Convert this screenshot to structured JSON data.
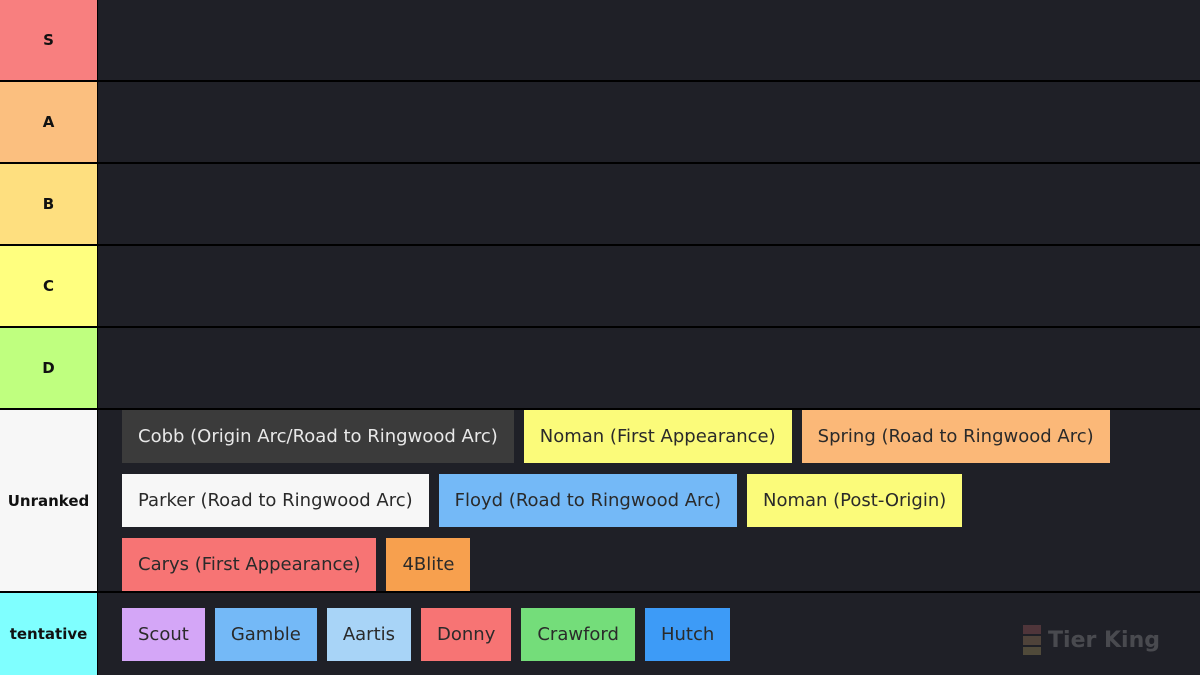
{
  "tiers": [
    {
      "label": "S",
      "color": "#f87f7f",
      "items": []
    },
    {
      "label": "A",
      "color": "#fbbf7f",
      "items": []
    },
    {
      "label": "B",
      "color": "#fedf7f",
      "items": []
    },
    {
      "label": "C",
      "color": "#ffff7f",
      "items": []
    },
    {
      "label": "D",
      "color": "#bfff7f",
      "items": []
    },
    {
      "label": "Unranked",
      "color": "#f7f7f7",
      "items": [
        {
          "label": "Cobb (Origin Arc/Road to Ringwood Arc)",
          "color": "#3b3b3b",
          "text_color": "#e8e8e8"
        },
        {
          "label": "Noman (First Appearance)",
          "color": "#fbfb7a"
        },
        {
          "label": "Spring (Road to Ringwood Arc)",
          "color": "#fbb878"
        },
        {
          "label": "Parker (Road to Ringwood Arc)",
          "color": "#f7f7f7"
        },
        {
          "label": "Floyd (Road to Ringwood Arc)",
          "color": "#74b9f7"
        },
        {
          "label": "Noman (Post-Origin)",
          "color": "#fbfb7a"
        },
        {
          "label": "Carys (First Appearance)",
          "color": "#f77474"
        },
        {
          "label": "4Blite",
          "color": "#f7a04e"
        }
      ]
    },
    {
      "label": "tentative",
      "color": "#7fffff",
      "items": [
        {
          "label": "Scout",
          "color": "#d4a6f7"
        },
        {
          "label": "Gamble",
          "color": "#74b9f7"
        },
        {
          "label": "Aartis",
          "color": "#a8d4f7"
        },
        {
          "label": "Donny",
          "color": "#f77474"
        },
        {
          "label": "Crawford",
          "color": "#74dd7a"
        },
        {
          "label": "Hutch",
          "color": "#3d9bf7"
        }
      ]
    }
  ],
  "watermark": "Tier King"
}
